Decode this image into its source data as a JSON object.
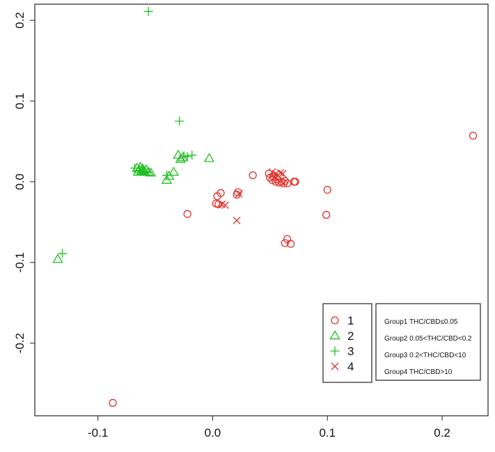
{
  "chart_data": {
    "type": "scatter",
    "xlim": [
      -0.155,
      0.24
    ],
    "ylim": [
      -0.29,
      0.22
    ],
    "xticks": [
      -0.1,
      0.0,
      0.1,
      0.2
    ],
    "yticks": [
      -0.2,
      -0.1,
      0.0,
      0.1,
      0.2
    ],
    "xtick_labels": [
      "-0.1",
      "0.0",
      "0.1",
      "0.2"
    ],
    "ytick_labels": [
      "-0.2",
      "-0.1",
      "0.0",
      "0.1",
      "0.2"
    ],
    "grid": false,
    "legend_placement": "bottom-right",
    "series": [
      {
        "name": "1",
        "marker": "circle",
        "color": "#e0302a",
        "points": [
          [
            -0.087,
            -0.274
          ],
          [
            -0.022,
            -0.04
          ],
          [
            0.003,
            -0.027
          ],
          [
            0.004,
            -0.018
          ],
          [
            0.005,
            -0.028
          ],
          [
            0.007,
            -0.014
          ],
          [
            0.022,
            -0.013
          ],
          [
            0.021,
            -0.016
          ],
          [
            0.035,
            0.008
          ],
          [
            0.049,
            0.01
          ],
          [
            0.05,
            0.005
          ],
          [
            0.052,
            0.002
          ],
          [
            0.053,
            0.006
          ],
          [
            0.055,
            0.0
          ],
          [
            0.056,
            0.003
          ],
          [
            0.058,
            -0.001
          ],
          [
            0.06,
            0.0
          ],
          [
            0.062,
            -0.002
          ],
          [
            0.063,
            0.001
          ],
          [
            0.065,
            -0.002
          ],
          [
            0.071,
            0.0
          ],
          [
            0.072,
            0.0
          ],
          [
            0.063,
            -0.076
          ],
          [
            0.065,
            -0.071
          ],
          [
            0.068,
            -0.077
          ],
          [
            0.099,
            -0.041
          ],
          [
            0.1,
            -0.01
          ],
          [
            0.227,
            0.057
          ]
        ]
      },
      {
        "name": "2",
        "marker": "triangle",
        "color": "#1fbf1f",
        "points": [
          [
            -0.135,
            -0.096
          ],
          [
            -0.066,
            0.017
          ],
          [
            -0.064,
            0.015
          ],
          [
            -0.063,
            0.018
          ],
          [
            -0.062,
            0.013
          ],
          [
            -0.061,
            0.016
          ],
          [
            -0.06,
            0.014
          ],
          [
            -0.059,
            0.012
          ],
          [
            -0.058,
            0.015
          ],
          [
            -0.056,
            0.012
          ],
          [
            -0.054,
            0.011
          ],
          [
            -0.065,
            0.012
          ],
          [
            -0.04,
            0.002
          ],
          [
            -0.038,
            0.007
          ],
          [
            -0.034,
            0.012
          ],
          [
            -0.03,
            0.033
          ],
          [
            -0.028,
            0.028
          ],
          [
            -0.026,
            0.03
          ],
          [
            -0.003,
            0.029
          ]
        ]
      },
      {
        "name": "3",
        "marker": "plus",
        "color": "#1fbf1f",
        "points": [
          [
            -0.056,
            0.211
          ],
          [
            -0.029,
            0.075
          ],
          [
            -0.068,
            0.017
          ],
          [
            -0.06,
            0.013
          ],
          [
            -0.04,
            0.008
          ],
          [
            -0.025,
            0.032
          ],
          [
            -0.022,
            0.031
          ],
          [
            -0.018,
            0.033
          ],
          [
            -0.131,
            -0.089
          ]
        ]
      },
      {
        "name": "4",
        "marker": "cross",
        "color": "#e0302a",
        "points": [
          [
            0.021,
            -0.048
          ],
          [
            0.023,
            -0.015
          ],
          [
            0.008,
            -0.028
          ],
          [
            0.011,
            -0.029
          ],
          [
            0.052,
            0.012
          ],
          [
            0.055,
            0.01
          ],
          [
            0.057,
            0.008
          ],
          [
            0.059,
            0.011
          ],
          [
            0.061,
            0.01
          ],
          [
            0.054,
            0.006
          ]
        ]
      }
    ],
    "group_box": [
      "Group1  THC/CBD≤0.05",
      "Group2  0.05<THC/CBD<0.2",
      "Group3  0.2<THC/CBD<10",
      "Group4  THC/CBD>10"
    ]
  }
}
